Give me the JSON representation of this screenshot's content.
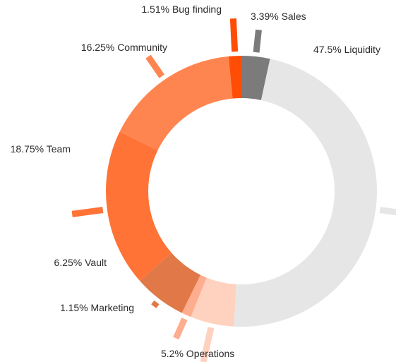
{
  "chart_data": {
    "type": "pie",
    "style": "donut",
    "direction": "clockwise from top",
    "slices": [
      {
        "label": "Sales",
        "value": 3.39,
        "display": "3.39% Sales",
        "color": "#7b7b7b"
      },
      {
        "label": "Liquidity",
        "value": 47.5,
        "display": "47.5%  Liquidity",
        "color": "#e6e6e6"
      },
      {
        "label": "Operations",
        "value": 5.2,
        "display": "5.2% Operations",
        "color": "#ffd1bf"
      },
      {
        "label": "Marketing",
        "value": 1.15,
        "display": "1.15% Marketing",
        "color": "#ffad8f"
      },
      {
        "label": "Vault",
        "value": 6.25,
        "display": "6.25%  Vault",
        "color": "#e07848"
      },
      {
        "label": "Team",
        "value": 18.75,
        "display": "18.75% Team",
        "color": "#ff7336"
      },
      {
        "label": "Community",
        "value": 16.25,
        "display": "16.25% Community",
        "color": "#ff8550"
      },
      {
        "label": "Bug finding",
        "value": 1.51,
        "display": "1.51%  Bug finding",
        "color": "#ff4d06"
      }
    ]
  }
}
